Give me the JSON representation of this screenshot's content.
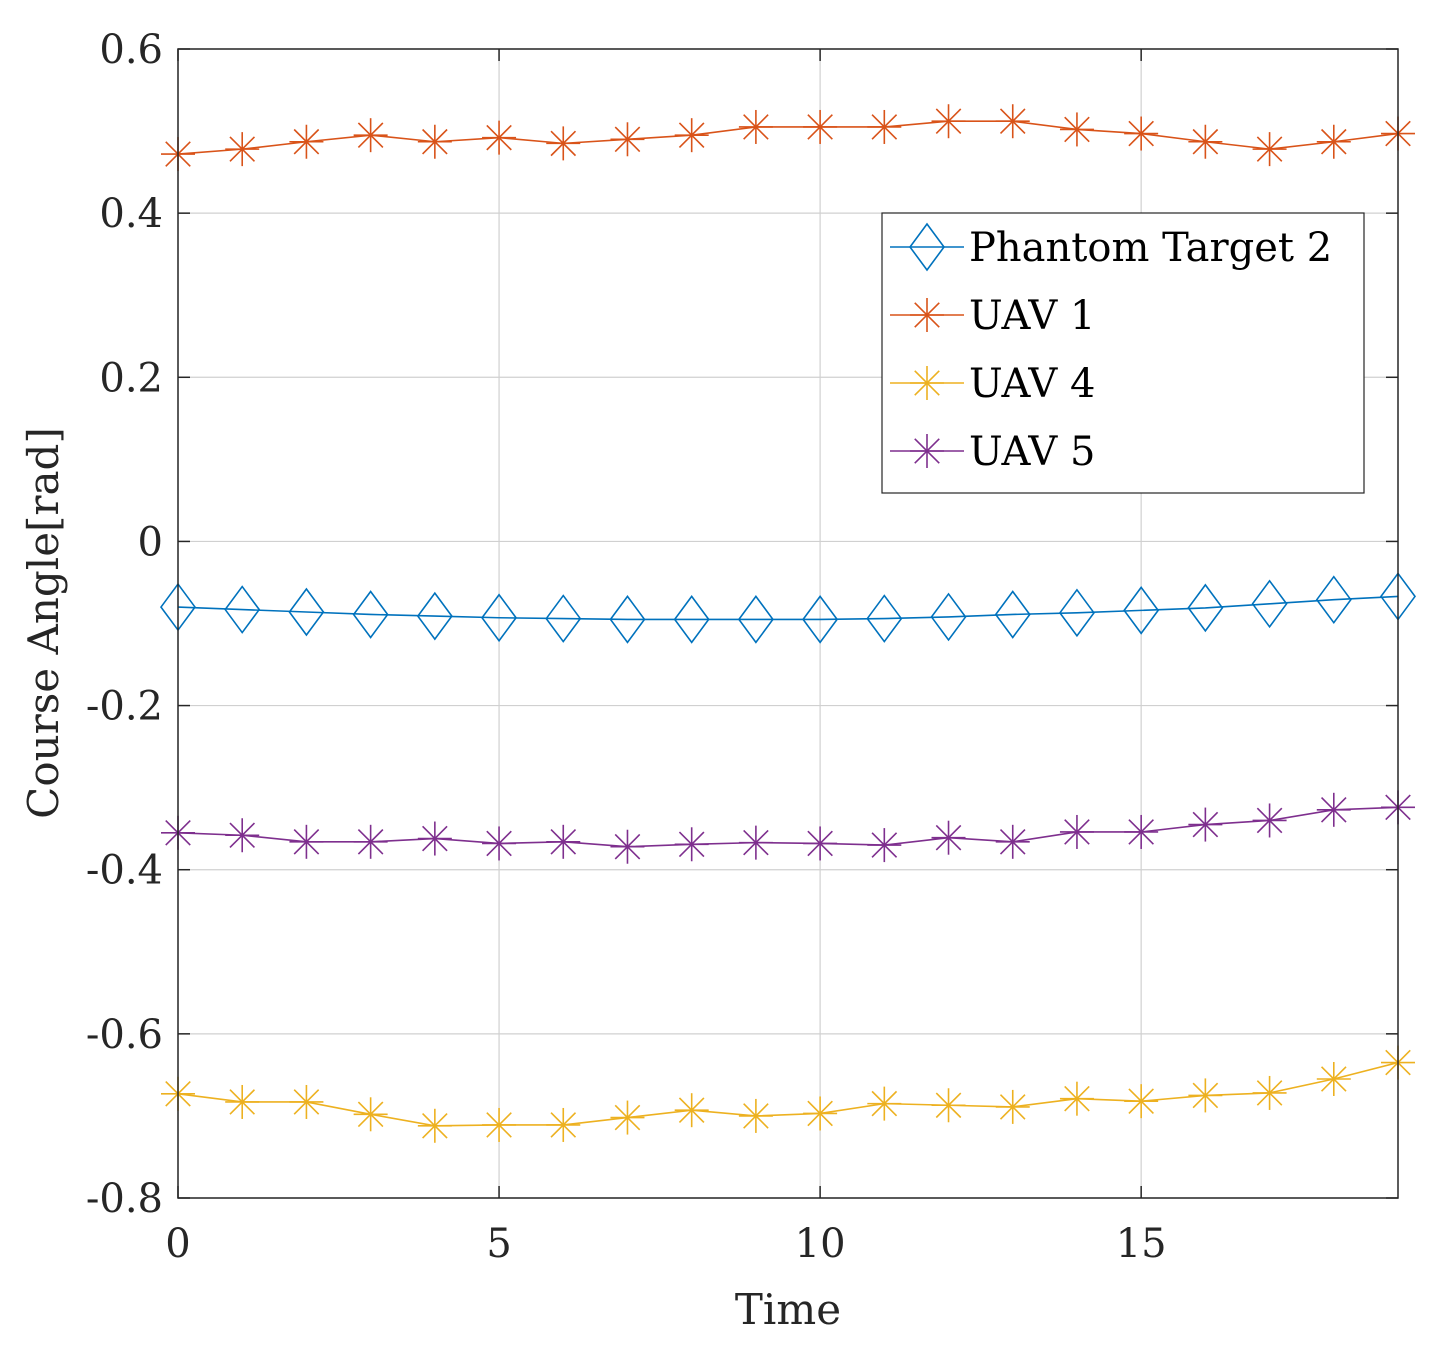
{
  "chart_data": {
    "type": "line",
    "title": "",
    "xlabel": "Time",
    "ylabel": "Course Angle[rad]",
    "xlim": [
      0,
      19
    ],
    "ylim": [
      -0.8,
      0.6
    ],
    "xticks": [
      0,
      5,
      10,
      15
    ],
    "xtick_labels": [
      "0",
      "5",
      "10",
      "15"
    ],
    "yticks": [
      -0.8,
      -0.6,
      -0.4,
      -0.2,
      0,
      0.2,
      0.4,
      0.6
    ],
    "ytick_labels": [
      "-0.8",
      "-0.6",
      "-0.4",
      "-0.2",
      "0",
      "0.2",
      "0.4",
      "0.6"
    ],
    "grid": true,
    "legend_position": "top-right",
    "x": [
      0,
      1,
      2,
      3,
      4,
      5,
      6,
      7,
      8,
      9,
      10,
      11,
      12,
      13,
      14,
      15,
      16,
      17,
      18,
      19
    ],
    "series": [
      {
        "name": "Phantom Target 2",
        "marker": "diamond",
        "color": "#0072BD",
        "values": [
          -0.08,
          -0.083,
          -0.086,
          -0.089,
          -0.091,
          -0.093,
          -0.094,
          -0.095,
          -0.095,
          -0.095,
          -0.095,
          -0.094,
          -0.092,
          -0.089,
          -0.087,
          -0.084,
          -0.081,
          -0.076,
          -0.071,
          -0.067
        ]
      },
      {
        "name": "UAV 1",
        "marker": "star",
        "color": "#D95319",
        "values": [
          0.472,
          0.478,
          0.487,
          0.495,
          0.487,
          0.492,
          0.485,
          0.49,
          0.495,
          0.505,
          0.505,
          0.505,
          0.512,
          0.512,
          0.502,
          0.497,
          0.487,
          0.478,
          0.487,
          0.497
        ]
      },
      {
        "name": "UAV 4",
        "marker": "star",
        "color": "#EDB120",
        "values": [
          -0.673,
          -0.683,
          -0.683,
          -0.698,
          -0.712,
          -0.711,
          -0.711,
          -0.702,
          -0.693,
          -0.7,
          -0.697,
          -0.685,
          -0.687,
          -0.689,
          -0.679,
          -0.682,
          -0.675,
          -0.672,
          -0.655,
          -0.635
        ]
      },
      {
        "name": "UAV 5",
        "marker": "star",
        "color": "#7E2F8E",
        "values": [
          -0.355,
          -0.358,
          -0.366,
          -0.366,
          -0.362,
          -0.368,
          -0.366,
          -0.372,
          -0.369,
          -0.367,
          -0.368,
          -0.37,
          -0.361,
          -0.366,
          -0.354,
          -0.354,
          -0.345,
          -0.34,
          -0.327,
          -0.324
        ]
      }
    ]
  }
}
